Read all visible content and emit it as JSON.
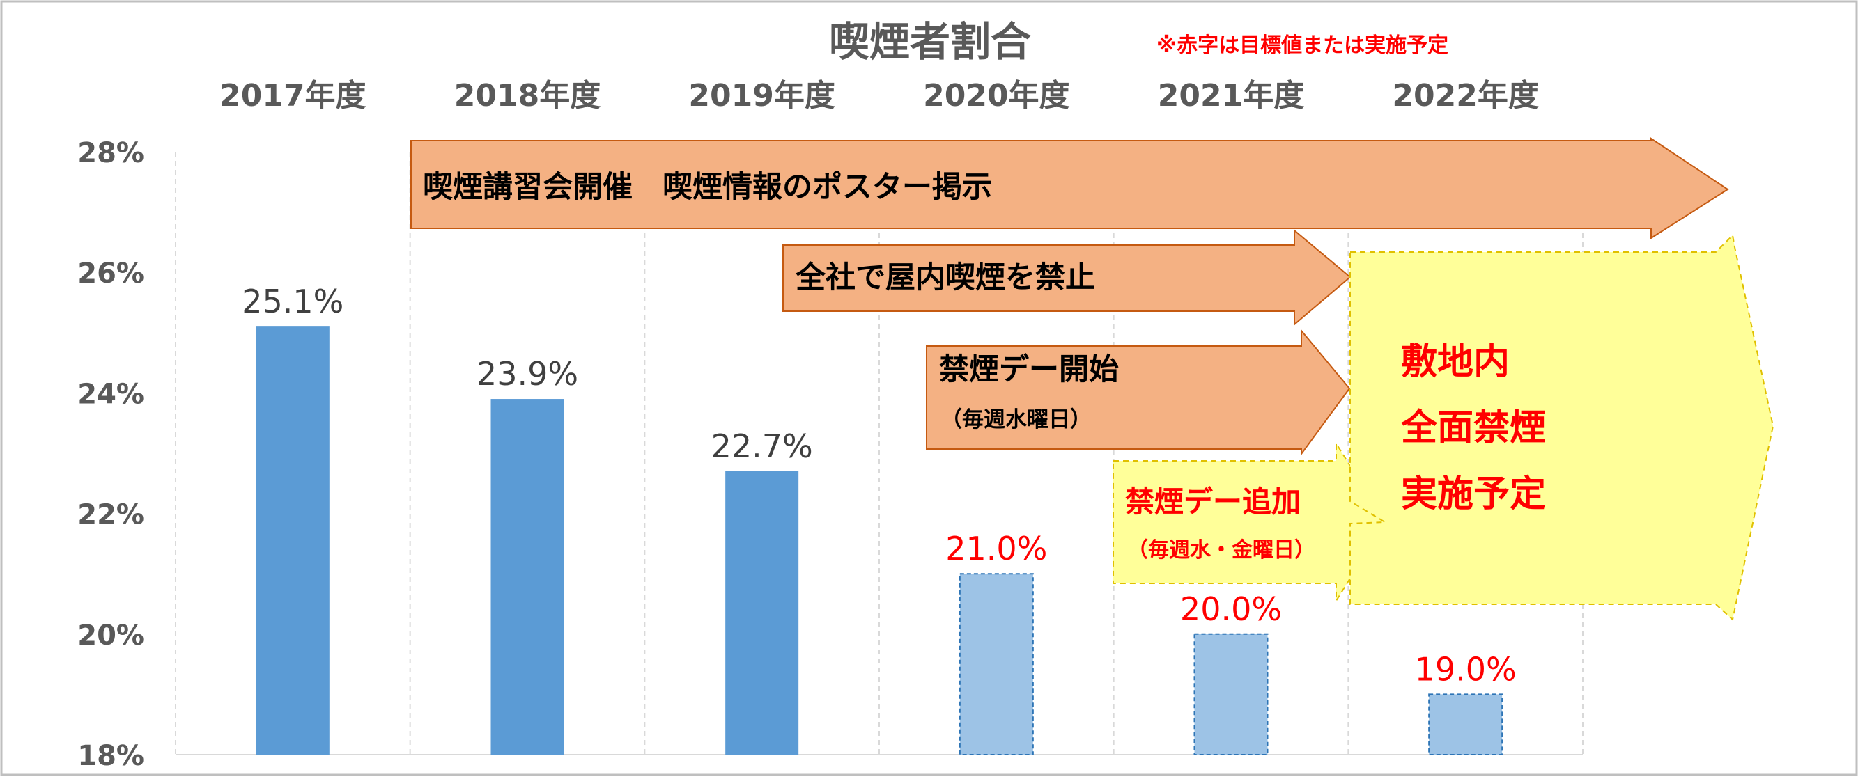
{
  "chart_data": {
    "type": "bar",
    "title": "喫煙者割合",
    "note": "※赤字は目標値または実施予定",
    "categories": [
      "2017年度",
      "2018年度",
      "2019年度",
      "2020年度",
      "2021年度",
      "2022年度"
    ],
    "values": [
      25.1,
      23.9,
      22.7,
      21.0,
      20.0,
      19.0
    ],
    "value_labels": [
      "25.1%",
      "23.9%",
      "22.7%",
      "21.0%",
      "20.0%",
      "19.0%"
    ],
    "target": [
      false,
      false,
      false,
      true,
      true,
      true
    ],
    "ylim": [
      18,
      28
    ],
    "yticks": [
      "18%",
      "20%",
      "22%",
      "24%",
      "26%",
      "28%"
    ],
    "category_label_position": "top",
    "grid": "vertical dashed",
    "annotations": [
      {
        "text": "喫煙講習会開催　喫煙情報のポスター掲示",
        "from": "2018年度",
        "to": "beyond 2022年度",
        "style": "orange arrow"
      },
      {
        "text": "全社で屋内喫煙を禁止",
        "from": "2019年度",
        "to": "2021年度",
        "style": "orange arrow"
      },
      {
        "lines": [
          "禁煙デー開始",
          "（毎週水曜日）"
        ],
        "from": "2020年度",
        "to": "2021年度",
        "style": "orange arrow"
      },
      {
        "lines": [
          "禁煙デー追加",
          "（毎週水・金曜日）"
        ],
        "from": "2021年度",
        "to": "2022年度",
        "style": "yellow dashed arrow, red text"
      },
      {
        "lines": [
          "敷地内",
          "全面禁煙",
          "実施予定"
        ],
        "from": "2022年度",
        "to": "beyond 2022年度",
        "style": "yellow dashed chevron, red text"
      }
    ]
  },
  "colors": {
    "actual_bar": "#5b9bd5",
    "target_bar": "#9dc3e6",
    "target_bar_border": "#2e75b6",
    "orange_arrow_fill": "#f4b183",
    "orange_arrow_border": "#c55a11",
    "yellow_arrow_fill": "#ffff99",
    "yellow_arrow_border": "#e0c000",
    "target_text": "#ff0000",
    "axis_text": "#595959",
    "value_text": "#404040",
    "grid": "#d9d9d9"
  }
}
